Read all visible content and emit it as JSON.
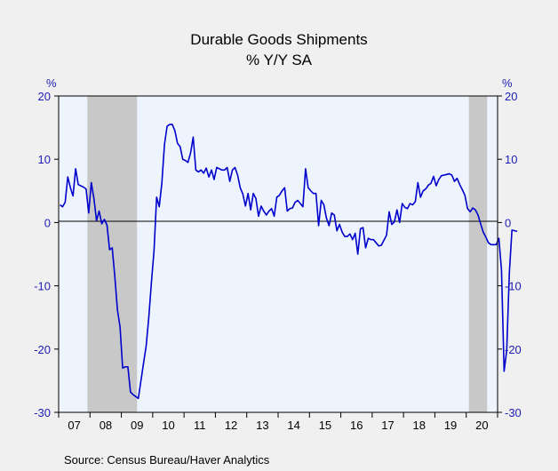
{
  "chart_data": {
    "type": "line",
    "title": "Durable Goods Shipments",
    "subtitle": "% Y/Y SA",
    "left_unit": "%",
    "right_unit": "%",
    "source": "Source:  Census Bureau/Haver Analytics",
    "ylim": [
      -30,
      20
    ],
    "y_ticks": [
      20,
      10,
      0,
      -10,
      -20,
      -30
    ],
    "x_tick_labels": [
      "07",
      "08",
      "09",
      "10",
      "11",
      "12",
      "13",
      "14",
      "15",
      "16",
      "17",
      "18",
      "19",
      "20"
    ],
    "grid": false,
    "recessions": [
      {
        "start": "2007-12",
        "end": "2009-06"
      },
      {
        "start": "2020-02",
        "end": "2020-08"
      }
    ],
    "series": [
      {
        "color": "#0000cc",
        "start": "2007-01",
        "values": [
          2.8,
          2.5,
          3.2,
          7.2,
          5.5,
          4.2,
          8.5,
          6,
          5.8,
          5.6,
          5.3,
          1.5,
          6.3,
          3.8,
          0.3,
          1.8,
          -0.2,
          0.5,
          -0.4,
          -4.3,
          -4,
          -8.5,
          -13.8,
          -16.5,
          -23,
          -22.8,
          -22.8,
          -26.8,
          -27.2,
          -27.5,
          -27.8,
          -25,
          -22.2,
          -19.5,
          -15,
          -9.5,
          -4.5,
          4,
          2.5,
          6.2,
          12.3,
          15.2,
          15.5,
          15.5,
          14.5,
          12.5,
          12,
          10,
          9.8,
          9.5,
          11,
          13.5,
          8.3,
          8,
          8.3,
          7.8,
          8.6,
          7.2,
          8.3,
          6.8,
          8.7,
          8.5,
          8.3,
          8.3,
          8.7,
          6.5,
          8.3,
          8.7,
          7.5,
          5.5,
          4.5,
          2.6,
          4.6,
          2,
          4.6,
          3.8,
          1,
          2.6,
          1.8,
          1.2,
          1.8,
          2.2,
          1,
          4,
          4.3,
          5,
          5.5,
          1.8,
          2.2,
          2.3,
          3.2,
          3.5,
          3,
          2.5,
          8.5,
          5.5,
          5,
          4.6,
          4.6,
          -0.5,
          3.5,
          2.8,
          0.7,
          -0.5,
          1.5,
          1.2,
          -1.3,
          -0.3,
          -1.5,
          -2.2,
          -2.2,
          -1.8,
          -2.7,
          -1.7,
          -5,
          -1,
          -0.8,
          -4,
          -2.5,
          -2.7,
          -2.7,
          -3.2,
          -3.7,
          -3.6,
          -2.8,
          -2,
          1.7,
          -0.3,
          0.1,
          2,
          0,
          3,
          2.4,
          2.2,
          3,
          2.8,
          3.3,
          6.3,
          4,
          5,
          5.3,
          5.9,
          6.2,
          7.3,
          5.8,
          6.8,
          7.4,
          7.5,
          7.6,
          7.7,
          7.5,
          6.5,
          7,
          6,
          5.2,
          4.3,
          2.2,
          1.7,
          2.3,
          2,
          1.2,
          -0.2,
          -1.5,
          -2.3,
          -3.2,
          -3.5,
          -3.5,
          -3.5,
          -2.5,
          -7.5,
          -23.5,
          -20.2,
          -8,
          -1.2,
          -1.3,
          -1.4
        ]
      }
    ]
  }
}
